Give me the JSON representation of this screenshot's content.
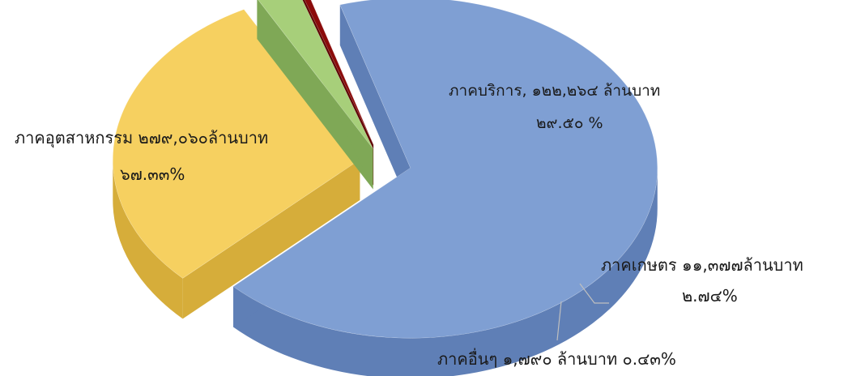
{
  "chart_data": {
    "type": "pie",
    "title": "",
    "series": [
      {
        "name": "",
        "values": [
          {
            "label": "ภาคอุตสาหกรรม",
            "value_text": "๒๗๙,๐๖๐",
            "unit_text": "ล้านบาท",
            "percent_text": "๖๗.๓๓%",
            "value": 279060,
            "percent": 67.33,
            "color": "#7f9fd3",
            "side_color": "#5f7fb6",
            "line1": "ภาคอุตสาหกรรม ๒๗๙,๐๖๐ล้านบาท",
            "line2": "๖๗.๓๓%"
          },
          {
            "label": "ภาคบริการ",
            "value_text": "๑๒๒,๒๖๔",
            "unit_text": "ล้านบาท",
            "percent_text": "๒๙.๕๐ %",
            "value": 122264,
            "percent": 29.5,
            "color": "#f6d060",
            "side_color": "#d6ad3a",
            "line1": "ภาคบริการ, ๑๒๒,๒๖๔ ล้านบาท",
            "line2": "๒๙.๕๐ %"
          },
          {
            "label": "ภาคเกษตร",
            "value_text": "๑๑,๓๗๗",
            "unit_text": "ล้านบาท",
            "percent_text": "๒.๗๔%",
            "value": 11377,
            "percent": 2.74,
            "color": "#a7cf7a",
            "side_color": "#7fa856",
            "line1": "ภาคเกษตร ๑๑,๓๗๗ล้านบาท",
            "line2": "๒.๗๔%"
          },
          {
            "label": "ภาคอื่นๆ",
            "value_text": "๑,๗๙๐",
            "unit_text": "ล้านบาท",
            "percent_text": "๐.๔๓%",
            "value": 1790,
            "percent": 0.43,
            "color": "#8b0b0b",
            "side_color": "#5e0404",
            "line1": "ภาคอื่นๆ ๑,๗๙๐ ล้านบาท ๐.๔๓%",
            "line2": ""
          }
        ]
      }
    ],
    "exploded": true,
    "three_d": true,
    "legend": "none"
  }
}
